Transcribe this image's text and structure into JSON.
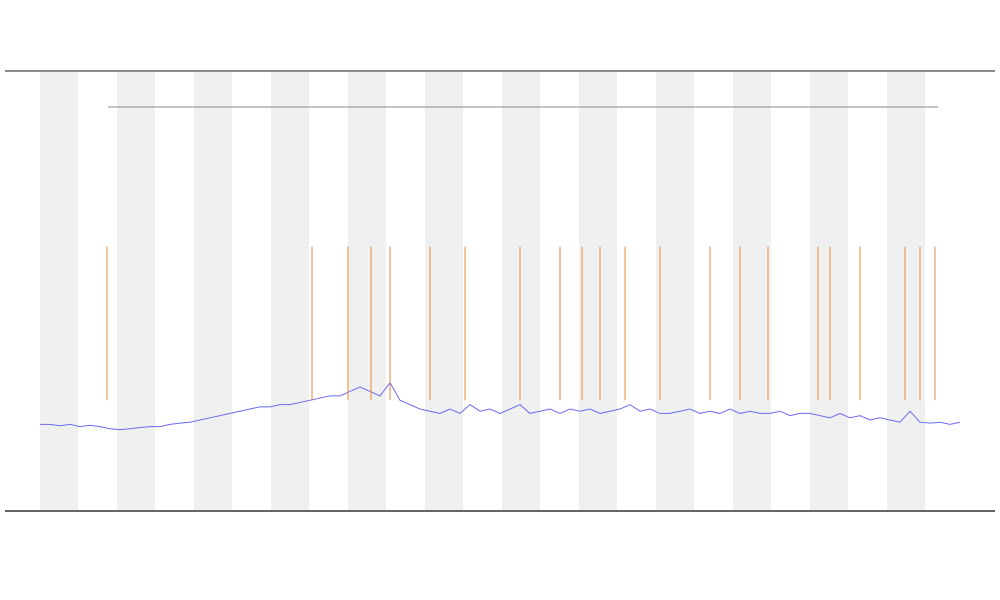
{
  "chart_data": {
    "type": "line",
    "xlim": [
      0,
      92
    ],
    "ylim": [
      0,
      100
    ],
    "series": [
      {
        "color": "#6b6bf0",
        "values": [
          19.5,
          19.5,
          19.2,
          19.5,
          19,
          19.3,
          19,
          18.5,
          18.3,
          18.5,
          18.8,
          19,
          19,
          19.5,
          19.8,
          20,
          20.5,
          21,
          21.5,
          22,
          22.5,
          23,
          23.5,
          23.5,
          24,
          24,
          24.5,
          25,
          25.5,
          26,
          26,
          27,
          28,
          27,
          26,
          29,
          25,
          24,
          23,
          22.5,
          22,
          23,
          22,
          24,
          22.5,
          23,
          22,
          23,
          24,
          22,
          22.5,
          23,
          22,
          23,
          22.5,
          23,
          22,
          22.5,
          23,
          24,
          22.5,
          23,
          22,
          22,
          22.5,
          23,
          22,
          22.5,
          22,
          23,
          22,
          22.5,
          22,
          22,
          22.5,
          21.5,
          22,
          22,
          21.5,
          21,
          22,
          21,
          21.5,
          20.5,
          21,
          20.5,
          20,
          22.5,
          20,
          19.8,
          20,
          19.5,
          20
        ]
      }
    ],
    "events": {
      "color": "#e8873a",
      "x": [
        6.7,
        27.2,
        30.8,
        33.1,
        35,
        39,
        42.5,
        48,
        52,
        54.2,
        56,
        58.5,
        62,
        67,
        70,
        72.8,
        77.8,
        79,
        82,
        86.5,
        88,
        89.5
      ],
      "top": 60
    }
  }
}
